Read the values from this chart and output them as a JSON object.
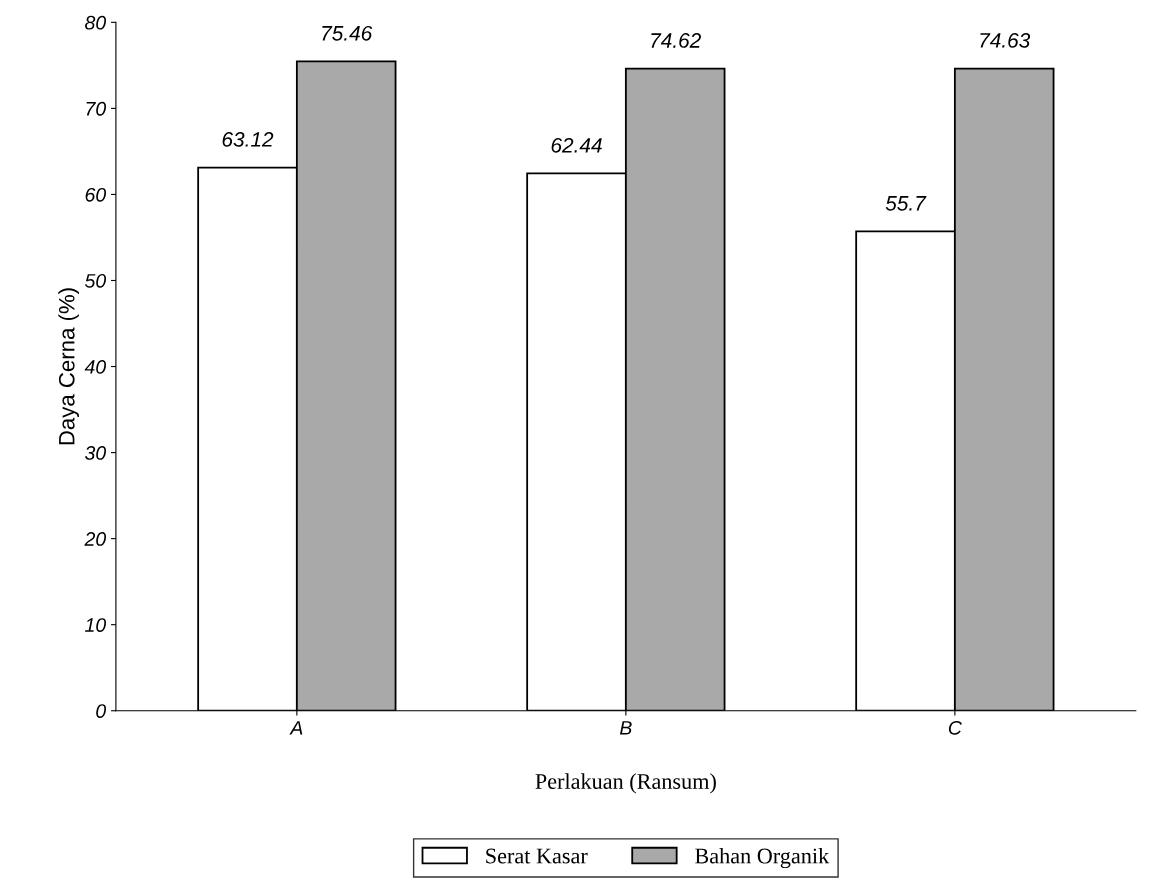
{
  "chart_data": {
    "type": "bar",
    "xlabel": "Perlakuan (Ransum)",
    "ylabel": "Daya Cerna (%)",
    "categories": [
      "A",
      "B",
      "C"
    ],
    "series": [
      {
        "name": "Serat Kasar",
        "color": "#ffffff",
        "values": [
          63.12,
          62.44,
          55.7
        ]
      },
      {
        "name": "Bahan Organik",
        "color": "#a9a9a9",
        "values": [
          75.46,
          74.62,
          74.63
        ]
      }
    ],
    "ylim": [
      0,
      80
    ],
    "yticks": [
      0,
      10,
      20,
      30,
      40,
      50,
      60,
      70,
      80
    ],
    "data_labels": true,
    "grid": false,
    "legend": "bottom"
  }
}
